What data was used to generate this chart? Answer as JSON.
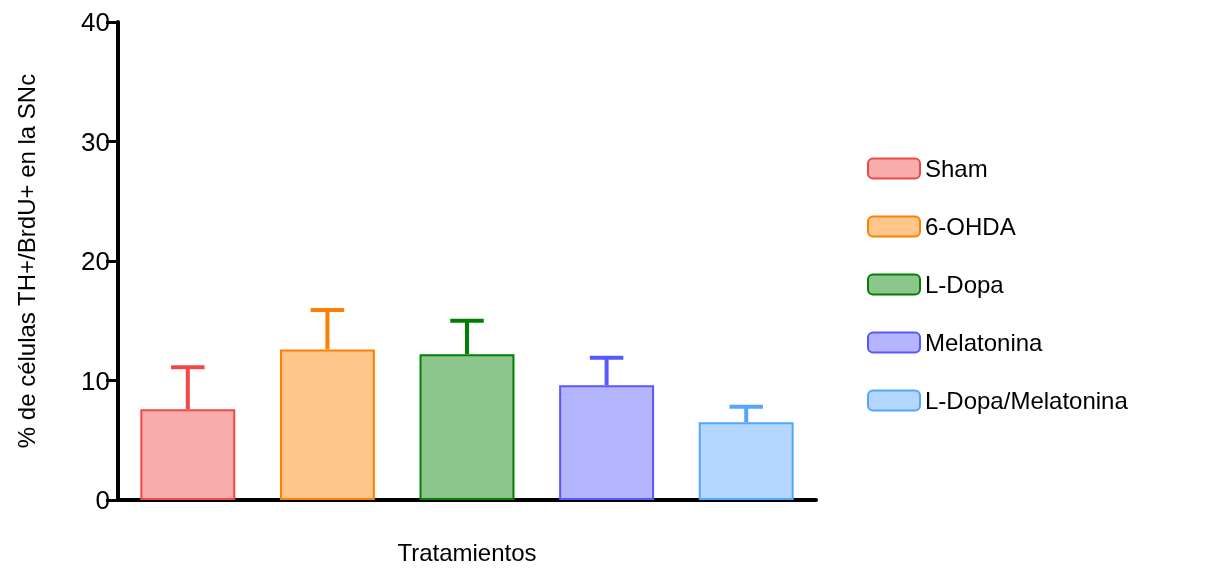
{
  "chart_data": {
    "type": "bar",
    "xlabel": "Tratamientos",
    "ylabel": "% de células TH+/BrdU+ en la SNc",
    "categories": [
      null,
      null,
      null,
      null,
      null
    ],
    "series": [
      {
        "name": "Sham",
        "color": "#f04848",
        "values": [
          7.6,
          null,
          null,
          null,
          null
        ],
        "errors": [
          [
            7.6,
            11.1
          ],
          null,
          null,
          null,
          null
        ]
      },
      {
        "name": "6-OHDA",
        "color": "#ff8000",
        "values": [
          null,
          12.6,
          null,
          null,
          null
        ],
        "errors": [
          null,
          [
            12.6,
            15.9
          ],
          null,
          null,
          null
        ]
      },
      {
        "name": "L-Dopa",
        "color": "#008000",
        "values": [
          null,
          null,
          12.2,
          null,
          null
        ],
        "errors": [
          null,
          null,
          [
            12.2,
            15.0
          ],
          null,
          null
        ]
      },
      {
        "name": "Melatonina",
        "color": "#5858ff",
        "values": [
          null,
          null,
          null,
          9.6,
          null
        ],
        "errors": [
          null,
          null,
          null,
          [
            9.6,
            11.9
          ],
          null
        ]
      },
      {
        "name": "L-Dopa/Melatonina",
        "color": "#55a5ff",
        "values": [
          null,
          null,
          null,
          null,
          6.5
        ],
        "errors": [
          null,
          null,
          null,
          null,
          [
            6.5,
            7.8
          ]
        ]
      }
    ],
    "ylim": [
      0,
      40
    ],
    "yticks": [
      0,
      10,
      20,
      30,
      40
    ],
    "grid": false,
    "legend": "right"
  }
}
